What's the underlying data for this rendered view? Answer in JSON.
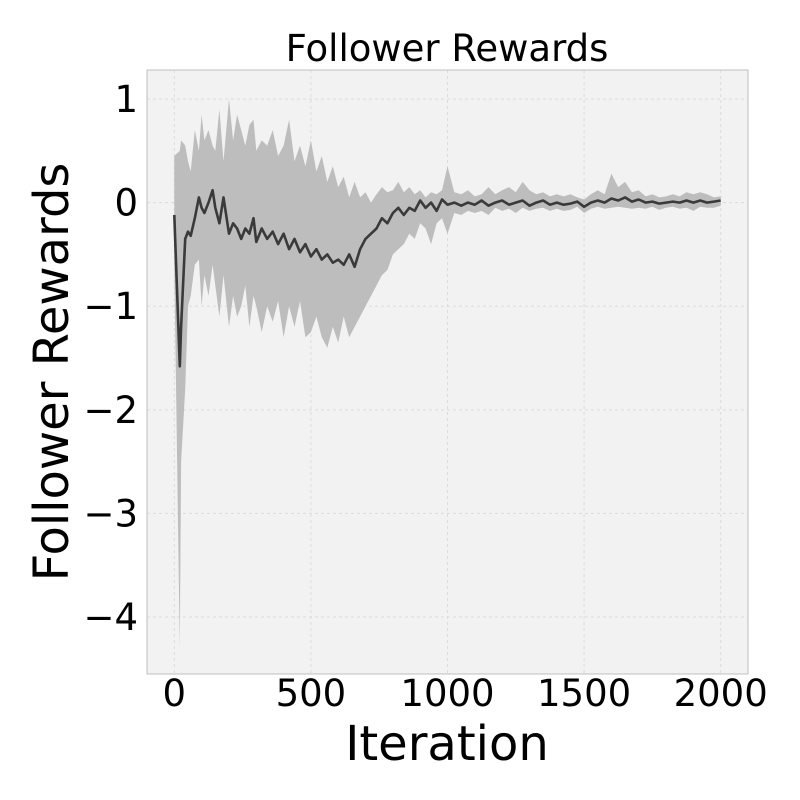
{
  "chart_data": {
    "type": "line",
    "title": "Follower Rewards",
    "xlabel": "Iteration",
    "ylabel": "Follower Rewards",
    "xlim": [
      -100,
      2100
    ],
    "ylim": [
      -4.55,
      1.28
    ],
    "xticks": [
      0,
      500,
      1000,
      1500,
      2000
    ],
    "xtick_labels": [
      "0",
      "500",
      "1000",
      "1500",
      "2000"
    ],
    "yticks": [
      1,
      0,
      -1,
      -2,
      -3,
      -4
    ],
    "ytick_labels": [
      "1",
      "0",
      "−1",
      "−2",
      "−3",
      "−4"
    ],
    "grid": true,
    "colors": {
      "line": "#3a3a3a",
      "band": "#bdbdbd",
      "plot_bg": "#f2f2f2",
      "grid": "#dcdcdc",
      "frame": "#bfbfbf"
    },
    "series": [
      {
        "x": [
          0,
          20,
          25,
          40,
          50,
          60,
          75,
          90,
          100,
          110,
          125,
          140,
          150,
          165,
          180,
          200,
          215,
          230,
          245,
          260,
          275,
          290,
          300,
          320,
          340,
          360,
          380,
          400,
          420,
          440,
          460,
          480,
          500,
          520,
          540,
          560,
          580,
          600,
          620,
          640,
          660,
          680,
          700,
          720,
          740,
          760,
          780,
          800,
          820,
          840,
          860,
          880,
          900,
          920,
          940,
          960,
          980,
          1000,
          1025,
          1050,
          1075,
          1100,
          1125,
          1150,
          1175,
          1200,
          1225,
          1250,
          1275,
          1300,
          1325,
          1350,
          1375,
          1400,
          1425,
          1450,
          1475,
          1500,
          1525,
          1550,
          1575,
          1600,
          1625,
          1650,
          1675,
          1700,
          1725,
          1750,
          1775,
          1800,
          1825,
          1850,
          1875,
          1900,
          1925,
          1950,
          1975,
          2000
        ],
        "y": [
          -0.12,
          -1.58,
          -1.2,
          -0.35,
          -0.28,
          -0.32,
          -0.15,
          0.05,
          -0.05,
          -0.1,
          0.0,
          0.12,
          -0.05,
          -0.2,
          0.05,
          -0.3,
          -0.2,
          -0.25,
          -0.35,
          -0.25,
          -0.3,
          -0.15,
          -0.38,
          -0.25,
          -0.35,
          -0.28,
          -0.4,
          -0.3,
          -0.45,
          -0.35,
          -0.48,
          -0.4,
          -0.52,
          -0.45,
          -0.55,
          -0.5,
          -0.58,
          -0.55,
          -0.6,
          -0.5,
          -0.62,
          -0.45,
          -0.35,
          -0.3,
          -0.25,
          -0.15,
          -0.2,
          -0.1,
          -0.05,
          -0.12,
          -0.05,
          -0.08,
          0.02,
          -0.05,
          0.0,
          -0.08,
          0.03,
          -0.02,
          0.0,
          -0.03,
          0.0,
          -0.02,
          0.02,
          -0.03,
          0.0,
          0.02,
          -0.02,
          0.0,
          0.02,
          -0.03,
          0.0,
          0.02,
          -0.02,
          0.0,
          -0.02,
          -0.01,
          0.01,
          -0.04,
          0.0,
          0.02,
          0.0,
          0.04,
          0.02,
          0.05,
          0.01,
          0.03,
          0.0,
          0.01,
          -0.01,
          0.0,
          0.01,
          0.0,
          0.02,
          0.0,
          0.02,
          0.0,
          0.01,
          0.02
        ],
        "upper": [
          0.45,
          0.5,
          0.6,
          0.55,
          0.4,
          0.3,
          0.7,
          0.5,
          0.85,
          0.6,
          0.7,
          0.55,
          0.5,
          0.9,
          0.4,
          1.0,
          0.6,
          0.85,
          0.7,
          0.55,
          0.75,
          0.8,
          0.5,
          0.6,
          0.55,
          0.7,
          0.45,
          0.55,
          0.8,
          0.4,
          0.55,
          0.35,
          0.6,
          0.3,
          0.45,
          0.2,
          0.35,
          0.15,
          0.25,
          0.05,
          0.2,
          0.05,
          0.1,
          0.0,
          0.08,
          0.15,
          0.1,
          0.12,
          0.2,
          0.1,
          0.15,
          0.08,
          0.12,
          0.05,
          0.1,
          0.08,
          0.12,
          0.35,
          0.1,
          0.08,
          0.12,
          0.06,
          0.08,
          0.15,
          0.08,
          0.12,
          0.15,
          0.1,
          0.2,
          0.12,
          0.08,
          0.1,
          0.06,
          0.08,
          0.06,
          0.08,
          0.05,
          0.03,
          0.08,
          0.12,
          0.08,
          0.28,
          0.15,
          0.2,
          0.1,
          0.12,
          0.06,
          0.08,
          0.05,
          0.06,
          0.08,
          0.06,
          0.1,
          0.08,
          0.1,
          0.08,
          0.05,
          0.06
        ],
        "lower": [
          -0.6,
          -4.3,
          -2.5,
          -1.8,
          -1.0,
          -0.9,
          -0.6,
          -0.55,
          -1.0,
          -0.7,
          -0.9,
          -0.6,
          -0.8,
          -1.1,
          -0.7,
          -1.2,
          -0.9,
          -1.1,
          -1.0,
          -0.8,
          -1.2,
          -0.9,
          -1.0,
          -1.25,
          -1.0,
          -1.15,
          -0.95,
          -1.3,
          -1.0,
          -1.2,
          -0.95,
          -1.3,
          -1.25,
          -1.1,
          -1.3,
          -1.4,
          -1.2,
          -1.35,
          -1.1,
          -1.3,
          -1.2,
          -1.1,
          -1.0,
          -0.9,
          -0.8,
          -0.7,
          -0.65,
          -0.5,
          -0.45,
          -0.4,
          -0.3,
          -0.35,
          -0.2,
          -0.25,
          -0.4,
          -0.2,
          -0.15,
          -0.3,
          -0.1,
          -0.12,
          -0.08,
          -0.1,
          -0.08,
          -0.12,
          -0.05,
          -0.08,
          -0.06,
          -0.1,
          -0.05,
          -0.08,
          -0.06,
          -0.05,
          -0.08,
          -0.06,
          -0.08,
          -0.07,
          -0.04,
          -0.1,
          -0.06,
          -0.04,
          -0.06,
          -0.05,
          -0.04,
          -0.05,
          -0.06,
          -0.05,
          -0.06,
          -0.04,
          -0.07,
          -0.05,
          -0.04,
          -0.06,
          -0.05,
          -0.08,
          -0.04,
          -0.05,
          -0.05,
          -0.03
        ]
      }
    ]
  }
}
